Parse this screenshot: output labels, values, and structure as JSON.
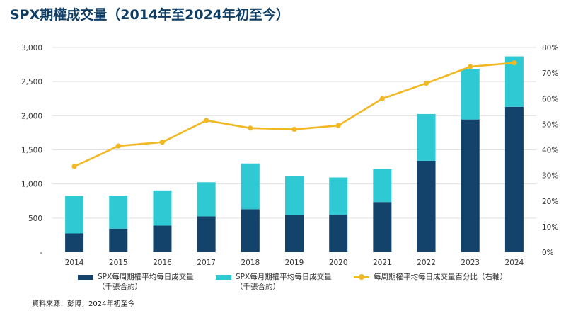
{
  "title": "SPX期權成交量（2014年至2024年初至今）",
  "source": "資料來源：彭博，2024年初至今",
  "colors": {
    "weekly": "#13426b",
    "monthly": "#2ec9d3",
    "pct": "#f2b824",
    "grid": "#e1e1e1"
  },
  "legend": {
    "weekly": {
      "line1": "SPX每周期權平均每日成交量",
      "line2": "（千張合約）"
    },
    "monthly": {
      "line1": "SPX每月期權平均每日成交量",
      "line2": "（千張合約）"
    },
    "pct": {
      "line1": "每周期權平均每日成交量百分比（右軸）"
    }
  },
  "chart_data": {
    "type": "bar",
    "stacked": true,
    "categories": [
      "2014",
      "2015",
      "2016",
      "2017",
      "2018",
      "2019",
      "2020",
      "2021",
      "2022",
      "2023",
      "2024"
    ],
    "series": [
      {
        "name": "SPX每周期權平均每日成交量（千張合約）",
        "type": "bar",
        "axis": "left",
        "values": [
          275,
          345,
          390,
          525,
          630,
          540,
          545,
          735,
          1340,
          1945,
          2130
        ]
      },
      {
        "name": "SPX每月期權平均每日成交量（千張合約）",
        "type": "bar",
        "axis": "left",
        "values": [
          550,
          485,
          515,
          500,
          670,
          580,
          550,
          485,
          685,
          740,
          740
        ]
      },
      {
        "name": "每周期權平均每日成交量百分比（右軸）",
        "type": "line",
        "axis": "right",
        "values": [
          33.5,
          41.5,
          43,
          51.5,
          48.5,
          48,
          49.5,
          60,
          66,
          72.5,
          74
        ]
      }
    ],
    "yleft": {
      "min": 0,
      "max": 3000,
      "ticks": [
        "-",
        "500",
        "1,000",
        "1,500",
        "2,000",
        "2,500",
        "3,000"
      ]
    },
    "yright": {
      "min": 0,
      "max": 80,
      "ticks": [
        "0%",
        "10%",
        "20%",
        "30%",
        "40%",
        "50%",
        "60%",
        "70%",
        "80%"
      ]
    },
    "grid": true,
    "legend_position": "bottom"
  }
}
